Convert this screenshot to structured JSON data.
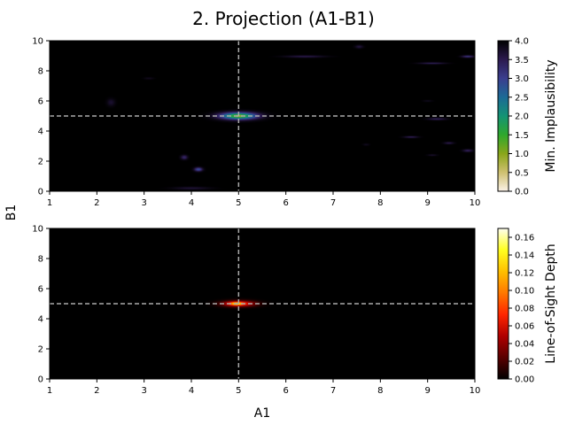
{
  "title": "2. Projection (A1-B1)",
  "xlabel": "A1",
  "ylabel": "B1",
  "chart_data": [
    {
      "type": "heatmap",
      "name": "top-panel",
      "xlim": [
        1,
        10
      ],
      "ylim": [
        0,
        10
      ],
      "xticks": [
        1,
        2,
        3,
        4,
        5,
        6,
        7,
        8,
        9,
        10
      ],
      "yticks": [
        0,
        2,
        4,
        6,
        8,
        10
      ],
      "background": "#000000",
      "crosshair": {
        "x": 5,
        "y": 5,
        "color": "#aaaaaa"
      },
      "colorbar": {
        "label": "Min. Implausibility",
        "range": [
          0.0,
          4.0
        ],
        "ticks": [
          "0.0",
          "0.5",
          "1.0",
          "1.5",
          "2.0",
          "2.5",
          "3.0",
          "3.5",
          "4.0"
        ],
        "colors": [
          "#fbf2e8",
          "#cfc070",
          "#8aa61a",
          "#2ea82d",
          "#149374",
          "#1c6a96",
          "#3a3e8e",
          "#2c1a4e",
          "#000000"
        ]
      },
      "blobs": [
        {
          "x": 5.0,
          "y": 5.0,
          "sx": 0.55,
          "sy": 0.32,
          "v": 1.2
        },
        {
          "x": 5.0,
          "y": 5.0,
          "sx": 0.25,
          "sy": 0.16,
          "v": 0.45
        },
        {
          "x": 4.15,
          "y": 1.45,
          "sx": 0.12,
          "sy": 0.18,
          "v": 2.8
        },
        {
          "x": 3.85,
          "y": 2.25,
          "sx": 0.1,
          "sy": 0.2,
          "v": 3.3
        },
        {
          "x": 2.3,
          "y": 5.9,
          "sx": 0.12,
          "sy": 0.35,
          "v": 3.7
        },
        {
          "x": 4.0,
          "y": 0.2,
          "sx": 0.55,
          "sy": 0.12,
          "v": 3.65
        },
        {
          "x": 6.4,
          "y": 8.95,
          "sx": 0.6,
          "sy": 0.1,
          "v": 3.5
        },
        {
          "x": 9.1,
          "y": 8.5,
          "sx": 0.4,
          "sy": 0.08,
          "v": 3.4
        },
        {
          "x": 9.85,
          "y": 8.95,
          "sx": 0.18,
          "sy": 0.1,
          "v": 3.1
        },
        {
          "x": 7.55,
          "y": 9.6,
          "sx": 0.12,
          "sy": 0.15,
          "v": 3.6
        },
        {
          "x": 8.65,
          "y": 3.6,
          "sx": 0.22,
          "sy": 0.08,
          "v": 3.4
        },
        {
          "x": 9.2,
          "y": 4.8,
          "sx": 0.28,
          "sy": 0.1,
          "v": 3.4
        },
        {
          "x": 9.45,
          "y": 3.2,
          "sx": 0.15,
          "sy": 0.1,
          "v": 3.5
        },
        {
          "x": 9.85,
          "y": 2.7,
          "sx": 0.15,
          "sy": 0.12,
          "v": 3.4
        },
        {
          "x": 9.1,
          "y": 2.4,
          "sx": 0.15,
          "sy": 0.08,
          "v": 3.7
        },
        {
          "x": 7.7,
          "y": 3.1,
          "sx": 0.1,
          "sy": 0.1,
          "v": 3.8
        },
        {
          "x": 3.1,
          "y": 7.5,
          "sx": 0.15,
          "sy": 0.1,
          "v": 3.8
        },
        {
          "x": 9.0,
          "y": 6.0,
          "sx": 0.15,
          "sy": 0.08,
          "v": 3.8
        }
      ]
    },
    {
      "type": "heatmap",
      "name": "bottom-panel",
      "xlim": [
        1,
        10
      ],
      "ylim": [
        0,
        10
      ],
      "xticks": [
        1,
        2,
        3,
        4,
        5,
        6,
        7,
        8,
        9,
        10
      ],
      "yticks": [
        0,
        2,
        4,
        6,
        8,
        10
      ],
      "background": "#000000",
      "crosshair": {
        "x": 5,
        "y": 5,
        "color": "#aaaaaa"
      },
      "colorbar": {
        "label": "Line-of-Sight Depth",
        "range": [
          0.0,
          0.17
        ],
        "ticks": [
          "0.00",
          "0.02",
          "0.04",
          "0.06",
          "0.08",
          "0.10",
          "0.12",
          "0.14",
          "0.16"
        ],
        "colors": [
          "#000000",
          "#5a0000",
          "#b00000",
          "#ff2600",
          "#ff7800",
          "#ffc000",
          "#ffff20",
          "#fffff0"
        ]
      },
      "blobs": [
        {
          "x": 5.0,
          "y": 5.0,
          "sx": 0.5,
          "sy": 0.28,
          "v": 0.08
        },
        {
          "x": 4.95,
          "y": 5.0,
          "sx": 0.2,
          "sy": 0.14,
          "v": 0.075
        }
      ]
    }
  ]
}
